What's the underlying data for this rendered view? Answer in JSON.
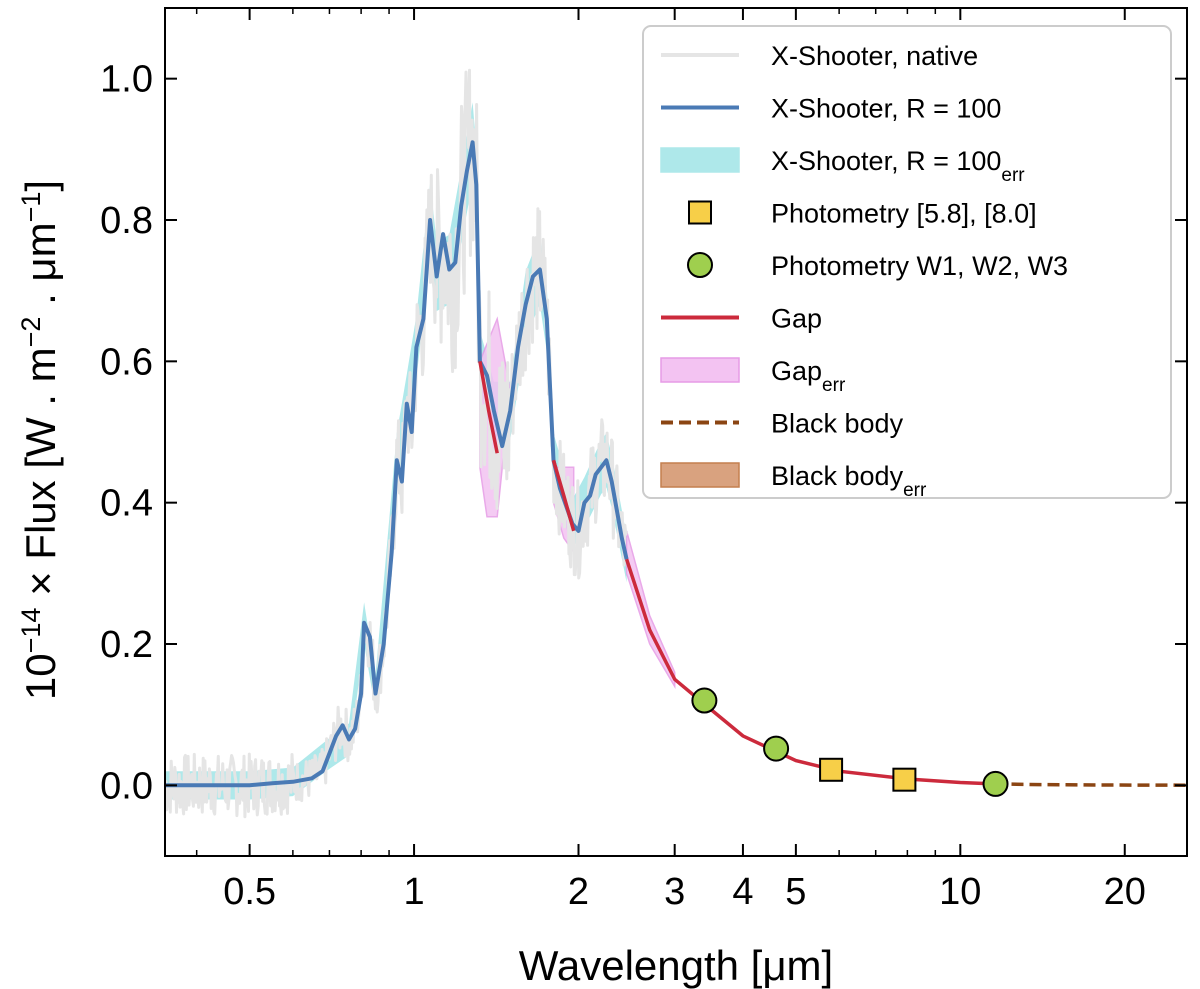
{
  "chart_data": {
    "type": "line",
    "xscale": "log",
    "xlabel": "Wavelength [μm]",
    "ylabel": {
      "prefix": "10",
      "prefix_exp": "−14",
      "main": " × Flux [W . m",
      "m_exp": "−2",
      "mid": " . μm",
      "mu_exp": "−1",
      "end": "]"
    },
    "xlim": [
      0.35,
      26
    ],
    "ylim": [
      -0.1,
      1.1
    ],
    "xticks": [
      {
        "value": 0.5,
        "label": "0.5"
      },
      {
        "value": 1,
        "label": "1"
      },
      {
        "value": 2,
        "label": "2"
      },
      {
        "value": 3,
        "label": "3"
      },
      {
        "value": 4,
        "label": "4"
      },
      {
        "value": 5,
        "label": "5"
      },
      {
        "value": 10,
        "label": "10"
      },
      {
        "value": 20,
        "label": "20"
      }
    ],
    "yticks": [
      {
        "value": 0.0,
        "label": "0.0"
      },
      {
        "value": 0.2,
        "label": "0.2"
      },
      {
        "value": 0.4,
        "label": "0.4"
      },
      {
        "value": 0.6,
        "label": "0.6"
      },
      {
        "value": 0.8,
        "label": "0.8"
      },
      {
        "value": 1.0,
        "label": "1.0"
      }
    ],
    "series": [
      {
        "name": "X-Shooter, R = 100",
        "color": "#4a7ab5",
        "points": [
          [
            0.35,
            0.0
          ],
          [
            0.45,
            0.0
          ],
          [
            0.5,
            0.0
          ],
          [
            0.55,
            0.003
          ],
          [
            0.6,
            0.005
          ],
          [
            0.65,
            0.01
          ],
          [
            0.68,
            0.02
          ],
          [
            0.7,
            0.045
          ],
          [
            0.72,
            0.07
          ],
          [
            0.74,
            0.085
          ],
          [
            0.76,
            0.065
          ],
          [
            0.78,
            0.08
          ],
          [
            0.8,
            0.13
          ],
          [
            0.81,
            0.23
          ],
          [
            0.83,
            0.21
          ],
          [
            0.85,
            0.13
          ],
          [
            0.88,
            0.2
          ],
          [
            0.91,
            0.33
          ],
          [
            0.93,
            0.46
          ],
          [
            0.95,
            0.43
          ],
          [
            0.97,
            0.54
          ],
          [
            0.99,
            0.5
          ],
          [
            1.01,
            0.62
          ],
          [
            1.04,
            0.66
          ],
          [
            1.07,
            0.8
          ],
          [
            1.1,
            0.72
          ],
          [
            1.13,
            0.78
          ],
          [
            1.16,
            0.73
          ],
          [
            1.19,
            0.74
          ],
          [
            1.22,
            0.82
          ],
          [
            1.25,
            0.87
          ],
          [
            1.28,
            0.91
          ],
          [
            1.3,
            0.85
          ],
          [
            1.32,
            0.6
          ],
          [
            1.36,
            0.58
          ],
          [
            1.4,
            0.53
          ],
          [
            1.45,
            0.48
          ],
          [
            1.5,
            0.53
          ],
          [
            1.55,
            0.62
          ],
          [
            1.6,
            0.68
          ],
          [
            1.65,
            0.72
          ],
          [
            1.7,
            0.73
          ],
          [
            1.75,
            0.66
          ],
          [
            1.8,
            0.46
          ],
          [
            1.85,
            0.42
          ],
          [
            1.95,
            0.37
          ],
          [
            2.0,
            0.36
          ],
          [
            2.05,
            0.4
          ],
          [
            2.1,
            0.41
          ],
          [
            2.15,
            0.44
          ],
          [
            2.2,
            0.45
          ],
          [
            2.25,
            0.46
          ],
          [
            2.3,
            0.43
          ],
          [
            2.4,
            0.35
          ],
          [
            2.45,
            0.32
          ]
        ]
      },
      {
        "name": "Gap",
        "color": "#cc2a3c",
        "segments": [
          [
            [
              1.32,
              0.6
            ],
            [
              1.37,
              0.53
            ],
            [
              1.42,
              0.47
            ]
          ],
          [
            [
              1.8,
              0.46
            ],
            [
              1.88,
              0.41
            ],
            [
              1.96,
              0.36
            ]
          ],
          [
            [
              2.45,
              0.32
            ],
            [
              2.7,
              0.22
            ],
            [
              3.0,
              0.15
            ],
            [
              3.4,
              0.115
            ],
            [
              4.0,
              0.07
            ],
            [
              5.0,
              0.035
            ],
            [
              6.0,
              0.02
            ],
            [
              8.0,
              0.009
            ],
            [
              10.0,
              0.004
            ],
            [
              11.5,
              0.002
            ]
          ]
        ]
      },
      {
        "name": "Black body",
        "color": "#8b4513",
        "points": [
          [
            11.5,
            0.002
          ],
          [
            14.0,
            0.001
          ],
          [
            18.0,
            0.0005
          ],
          [
            26.0,
            0.0002
          ]
        ]
      }
    ],
    "bands": [
      {
        "name": "X-Shooter, R = 100err",
        "color": "#aee8ea",
        "points": [
          [
            0.35,
            0.0
          ],
          [
            0.5,
            0.0
          ],
          [
            0.6,
            0.005
          ],
          [
            0.7,
            0.045
          ],
          [
            0.76,
            0.065
          ],
          [
            0.81,
            0.23
          ],
          [
            0.85,
            0.13
          ],
          [
            0.93,
            0.46
          ],
          [
            0.97,
            0.54
          ],
          [
            1.01,
            0.62
          ],
          [
            1.07,
            0.8
          ],
          [
            1.1,
            0.72
          ],
          [
            1.16,
            0.73
          ],
          [
            1.22,
            0.82
          ],
          [
            1.28,
            0.91
          ],
          [
            1.3,
            0.85
          ],
          [
            1.32,
            0.6
          ],
          [
            1.4,
            0.53
          ],
          [
            1.5,
            0.53
          ],
          [
            1.6,
            0.68
          ],
          [
            1.7,
            0.73
          ],
          [
            1.75,
            0.66
          ],
          [
            1.8,
            0.46
          ],
          [
            1.95,
            0.37
          ],
          [
            2.05,
            0.4
          ],
          [
            2.2,
            0.45
          ],
          [
            2.25,
            0.46
          ],
          [
            2.3,
            0.43
          ],
          [
            2.45,
            0.32
          ]
        ],
        "halfwidth": 0.04
      },
      {
        "name": "Gaperr",
        "color": "#f3c3f2",
        "edge": "#e69be6",
        "polygon": [
          [
            1.32,
            0.6
          ],
          [
            1.42,
            0.66
          ],
          [
            1.5,
            0.56
          ],
          [
            1.42,
            0.38
          ],
          [
            1.36,
            0.38
          ],
          [
            1.32,
            0.45
          ],
          [
            1.8,
            0.45
          ],
          [
            1.96,
            0.45
          ],
          [
            1.96,
            0.33
          ],
          [
            1.88,
            0.35
          ],
          [
            1.8,
            0.4
          ],
          [
            2.45,
            0.36
          ],
          [
            2.7,
            0.24
          ],
          [
            3.0,
            0.16
          ],
          [
            3.0,
            0.14
          ],
          [
            2.7,
            0.2
          ],
          [
            2.45,
            0.3
          ]
        ]
      }
    ],
    "native_spectrum": {
      "name": "X-Shooter, native",
      "color": "#e5e5e5"
    },
    "markers": [
      {
        "name": "Photometry W1, W2, W3",
        "shape": "circle",
        "color": "#9fcf4e",
        "points": [
          [
            3.4,
            0.12
          ],
          [
            4.6,
            0.052
          ],
          [
            11.6,
            0.002
          ]
        ]
      },
      {
        "name": "Photometry [5.8], [8.0]",
        "shape": "square",
        "color": "#f7cf48",
        "points": [
          [
            5.8,
            0.022
          ],
          [
            7.9,
            0.008
          ]
        ]
      }
    ],
    "legend": {
      "position": "top-right",
      "entries": [
        {
          "kind": "line",
          "color": "#e5e5e5",
          "label": "X-Shooter, native",
          "sub": ""
        },
        {
          "kind": "line",
          "color": "#4a7ab5",
          "label": "X-Shooter, R = 100",
          "sub": ""
        },
        {
          "kind": "patch",
          "color": "#aee8ea",
          "edge": "#aee8ea",
          "label": "X-Shooter, R = 100",
          "sub": "err"
        },
        {
          "kind": "square",
          "color": "#f7cf48",
          "label": "Photometry [5.8], [8.0]",
          "sub": ""
        },
        {
          "kind": "circle",
          "color": "#9fcf4e",
          "label": "Photometry W1, W2, W3",
          "sub": ""
        },
        {
          "kind": "line",
          "color": "#cc2a3c",
          "label": "Gap",
          "sub": ""
        },
        {
          "kind": "patch",
          "color": "#f3c3f2",
          "edge": "#e69be6",
          "label": "Gap",
          "sub": "err"
        },
        {
          "kind": "dashed",
          "color": "#8b4513",
          "label": "Black body",
          "sub": ""
        },
        {
          "kind": "patch",
          "color": "#d9a27f",
          "edge": "#c47f4f",
          "label": "Black body",
          "sub": "err"
        }
      ]
    }
  }
}
